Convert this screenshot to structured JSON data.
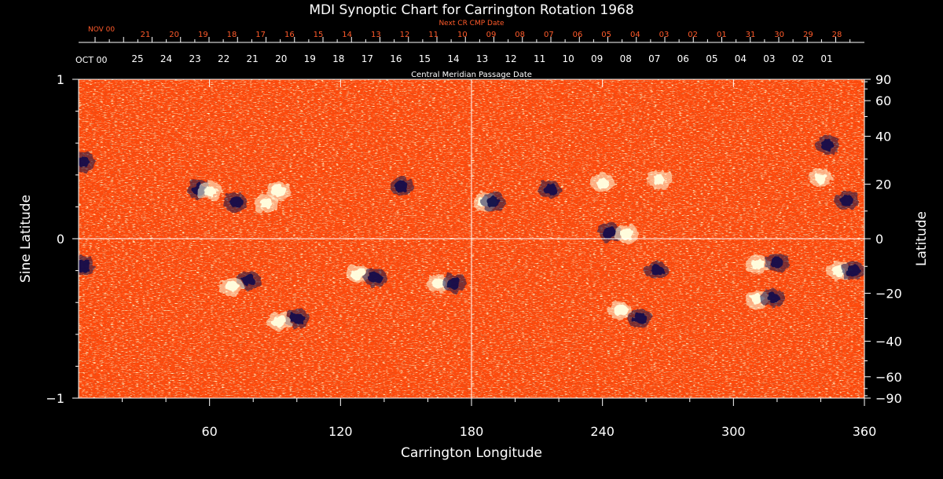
{
  "chart_data": {
    "type": "heatmap",
    "title": "MDI Synoptic Chart for Carrington Rotation 1968",
    "xlabel": "Carrington Longitude",
    "ylabel_left": "Sine Latitude",
    "ylabel_right": "Latitude",
    "xlim": [
      0,
      360
    ],
    "ylim": [
      -1,
      1
    ],
    "x_ticks": [
      60,
      120,
      180,
      240,
      300,
      360
    ],
    "y_ticks_left": [
      {
        "value": 1,
        "label": "1"
      },
      {
        "value": 0,
        "label": "0"
      },
      {
        "value": -1,
        "label": "−1"
      }
    ],
    "y_ticks_right": [
      90,
      60,
      40,
      20,
      0,
      -20,
      -40,
      -60,
      -90
    ],
    "top_axis_label": "Central Meridian Passage Date",
    "top_axis_month": "OCT 00",
    "top_axis_dates": [
      "25",
      "24",
      "23",
      "22",
      "21",
      "20",
      "19",
      "18",
      "17",
      "16",
      "15",
      "14",
      "13",
      "12",
      "11",
      "10",
      "09",
      "08",
      "07",
      "06",
      "05",
      "04",
      "03",
      "02",
      "01"
    ],
    "next_axis_label": "Next CR CMP Date",
    "next_axis_month": "NOV 00",
    "next_axis_dates": [
      "21",
      "20",
      "19",
      "18",
      "17",
      "16",
      "15",
      "14",
      "13",
      "12",
      "11",
      "10",
      "09",
      "08",
      "07",
      "06",
      "05",
      "04",
      "03",
      "02",
      "01",
      "31",
      "30",
      "29",
      "28"
    ],
    "grid_lines": {
      "longitude": 180,
      "sine_latitude": 0
    },
    "colors": {
      "background": "#ff4a0c",
      "positive": "#ffffe0",
      "negative": "#14124a",
      "text": "#ffffff",
      "next_axis": "#ff5a2a"
    },
    "active_regions": [
      {
        "lon": 55,
        "sinlat": 0.31,
        "polarity": "negative"
      },
      {
        "lon": 60,
        "sinlat": 0.3,
        "polarity": "positive"
      },
      {
        "lon": 72,
        "sinlat": 0.23,
        "polarity": "negative"
      },
      {
        "lon": 86,
        "sinlat": 0.22,
        "polarity": "positive"
      },
      {
        "lon": 92,
        "sinlat": 0.3,
        "polarity": "positive"
      },
      {
        "lon": 78,
        "sinlat": -0.26,
        "polarity": "negative"
      },
      {
        "lon": 70,
        "sinlat": -0.3,
        "polarity": "positive"
      },
      {
        "lon": 100,
        "sinlat": -0.5,
        "polarity": "negative"
      },
      {
        "lon": 92,
        "sinlat": -0.52,
        "polarity": "positive"
      },
      {
        "lon": 128,
        "sinlat": -0.22,
        "polarity": "positive"
      },
      {
        "lon": 136,
        "sinlat": -0.25,
        "polarity": "negative"
      },
      {
        "lon": 165,
        "sinlat": -0.28,
        "polarity": "positive"
      },
      {
        "lon": 172,
        "sinlat": -0.28,
        "polarity": "negative"
      },
      {
        "lon": 148,
        "sinlat": 0.33,
        "polarity": "negative"
      },
      {
        "lon": 186,
        "sinlat": 0.23,
        "polarity": "positive"
      },
      {
        "lon": 190,
        "sinlat": 0.23,
        "polarity": "negative"
      },
      {
        "lon": 216,
        "sinlat": 0.31,
        "polarity": "negative"
      },
      {
        "lon": 240,
        "sinlat": 0.35,
        "polarity": "positive"
      },
      {
        "lon": 266,
        "sinlat": 0.37,
        "polarity": "positive"
      },
      {
        "lon": 243,
        "sinlat": 0.04,
        "polarity": "negative"
      },
      {
        "lon": 251,
        "sinlat": 0.03,
        "polarity": "positive"
      },
      {
        "lon": 248,
        "sinlat": -0.45,
        "polarity": "positive"
      },
      {
        "lon": 257,
        "sinlat": -0.5,
        "polarity": "negative"
      },
      {
        "lon": 265,
        "sinlat": -0.2,
        "polarity": "negative"
      },
      {
        "lon": 311,
        "sinlat": -0.16,
        "polarity": "positive"
      },
      {
        "lon": 320,
        "sinlat": -0.15,
        "polarity": "negative"
      },
      {
        "lon": 311,
        "sinlat": -0.38,
        "polarity": "positive"
      },
      {
        "lon": 318,
        "sinlat": -0.37,
        "polarity": "negative"
      },
      {
        "lon": 348,
        "sinlat": -0.2,
        "polarity": "positive"
      },
      {
        "lon": 355,
        "sinlat": -0.2,
        "polarity": "negative"
      },
      {
        "lon": 340,
        "sinlat": 0.38,
        "polarity": "positive"
      },
      {
        "lon": 352,
        "sinlat": 0.24,
        "polarity": "negative"
      },
      {
        "lon": 343,
        "sinlat": 0.59,
        "polarity": "negative"
      },
      {
        "lon": 2,
        "sinlat": 0.48,
        "polarity": "negative"
      },
      {
        "lon": 2,
        "sinlat": -0.17,
        "polarity": "negative"
      }
    ]
  }
}
